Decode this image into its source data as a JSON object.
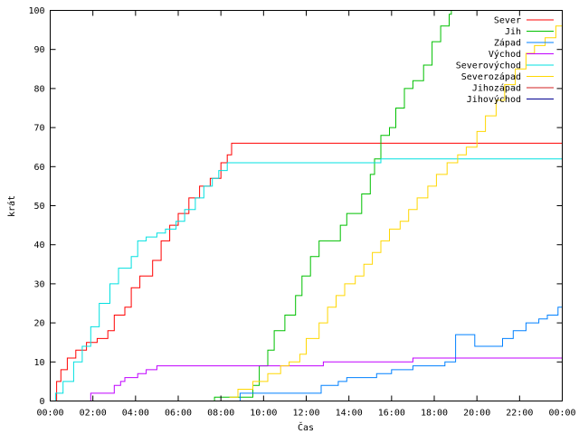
{
  "chart_data": {
    "type": "line",
    "xlabel": "Čas",
    "ylabel": "krát",
    "xlim": [
      0,
      24
    ],
    "ylim": [
      0,
      100
    ],
    "x_ticks": [
      {
        "value": 0,
        "label": "00:00"
      },
      {
        "value": 2,
        "label": "02:00"
      },
      {
        "value": 4,
        "label": "04:00"
      },
      {
        "value": 6,
        "label": "06:00"
      },
      {
        "value": 8,
        "label": "08:00"
      },
      {
        "value": 10,
        "label": "10:00"
      },
      {
        "value": 12,
        "label": "12:00"
      },
      {
        "value": 14,
        "label": "14:00"
      },
      {
        "value": 16,
        "label": "16:00"
      },
      {
        "value": 18,
        "label": "18:00"
      },
      {
        "value": 20,
        "label": "20:00"
      },
      {
        "value": 22,
        "label": "22:00"
      },
      {
        "value": 24,
        "label": "00:00"
      }
    ],
    "y_ticks": [
      0,
      10,
      20,
      30,
      40,
      50,
      60,
      70,
      80,
      90,
      100
    ],
    "grid": false,
    "legend_position": "top-right",
    "series": [
      {
        "name": "Sever",
        "color": "#ff0000",
        "points": [
          [
            0.2,
            0
          ],
          [
            0.3,
            5
          ],
          [
            0.5,
            8
          ],
          [
            0.8,
            11
          ],
          [
            1.2,
            13
          ],
          [
            1.7,
            15
          ],
          [
            2.2,
            16
          ],
          [
            2.7,
            18
          ],
          [
            3.0,
            22
          ],
          [
            3.5,
            24
          ],
          [
            3.8,
            29
          ],
          [
            4.2,
            32
          ],
          [
            4.8,
            36
          ],
          [
            5.2,
            41
          ],
          [
            5.6,
            45
          ],
          [
            6.0,
            48
          ],
          [
            6.5,
            52
          ],
          [
            7.0,
            55
          ],
          [
            7.5,
            57
          ],
          [
            8.0,
            61
          ],
          [
            8.3,
            63
          ],
          [
            8.5,
            66
          ],
          [
            24,
            66
          ]
        ]
      },
      {
        "name": "Jih",
        "color": "#00c000",
        "points": [
          [
            7.6,
            0
          ],
          [
            7.7,
            1
          ],
          [
            9.3,
            1
          ],
          [
            9.5,
            4
          ],
          [
            9.8,
            9
          ],
          [
            10.2,
            13
          ],
          [
            10.5,
            18
          ],
          [
            11.0,
            22
          ],
          [
            11.5,
            27
          ],
          [
            11.8,
            32
          ],
          [
            12.2,
            37
          ],
          [
            12.6,
            41
          ],
          [
            13.3,
            41
          ],
          [
            13.6,
            45
          ],
          [
            13.9,
            48
          ],
          [
            14.3,
            48
          ],
          [
            14.6,
            53
          ],
          [
            15.0,
            58
          ],
          [
            15.2,
            62
          ],
          [
            15.5,
            68
          ],
          [
            15.9,
            70
          ],
          [
            16.2,
            75
          ],
          [
            16.6,
            80
          ],
          [
            17.0,
            82
          ],
          [
            17.5,
            86
          ],
          [
            17.9,
            92
          ],
          [
            18.3,
            96
          ],
          [
            18.7,
            99
          ],
          [
            18.8,
            100
          ]
        ]
      },
      {
        "name": "Západ",
        "color": "#0080ff",
        "points": [
          [
            8.8,
            0
          ],
          [
            8.9,
            2
          ],
          [
            12.6,
            2
          ],
          [
            12.7,
            4
          ],
          [
            13.5,
            5
          ],
          [
            13.9,
            6
          ],
          [
            15.3,
            7
          ],
          [
            16.0,
            8
          ],
          [
            17.0,
            9
          ],
          [
            18.5,
            10
          ],
          [
            19.0,
            17
          ],
          [
            19.5,
            17
          ],
          [
            19.9,
            14
          ],
          [
            20.8,
            14
          ],
          [
            21.2,
            16
          ],
          [
            21.7,
            18
          ],
          [
            22.3,
            20
          ],
          [
            22.9,
            21
          ],
          [
            23.3,
            22
          ],
          [
            23.8,
            24
          ],
          [
            24,
            24
          ]
        ]
      },
      {
        "name": "Východ",
        "color": "#c000ff",
        "points": [
          [
            1.8,
            0
          ],
          [
            1.9,
            2
          ],
          [
            2.9,
            2
          ],
          [
            3.0,
            4
          ],
          [
            3.3,
            5
          ],
          [
            3.5,
            6
          ],
          [
            4.1,
            7
          ],
          [
            4.5,
            8
          ],
          [
            5.0,
            9
          ],
          [
            12.6,
            9
          ],
          [
            12.8,
            10
          ],
          [
            16.6,
            10
          ],
          [
            17.0,
            11
          ],
          [
            24,
            11
          ]
        ]
      },
      {
        "name": "Severovýchod",
        "color": "#00e0e0",
        "points": [
          [
            0.1,
            0
          ],
          [
            0.25,
            2
          ],
          [
            0.6,
            5
          ],
          [
            1.1,
            10
          ],
          [
            1.5,
            14
          ],
          [
            1.9,
            19
          ],
          [
            2.3,
            25
          ],
          [
            2.8,
            30
          ],
          [
            3.2,
            34
          ],
          [
            3.8,
            37
          ],
          [
            4.1,
            41
          ],
          [
            4.5,
            42
          ],
          [
            5.0,
            43
          ],
          [
            5.4,
            44
          ],
          [
            5.9,
            46
          ],
          [
            6.3,
            49
          ],
          [
            6.8,
            52
          ],
          [
            7.2,
            55
          ],
          [
            7.6,
            57
          ],
          [
            7.9,
            59
          ],
          [
            8.3,
            61
          ],
          [
            15.0,
            61
          ],
          [
            15.5,
            62
          ],
          [
            24,
            62
          ]
        ]
      },
      {
        "name": "Severozápad",
        "color": "#ffd700",
        "points": [
          [
            8.4,
            1
          ],
          [
            8.8,
            3
          ],
          [
            9.5,
            5
          ],
          [
            10.2,
            7
          ],
          [
            10.8,
            9
          ],
          [
            11.2,
            10
          ],
          [
            11.7,
            12
          ],
          [
            12.0,
            16
          ],
          [
            12.6,
            20
          ],
          [
            13.0,
            24
          ],
          [
            13.4,
            27
          ],
          [
            13.8,
            30
          ],
          [
            14.3,
            32
          ],
          [
            14.7,
            35
          ],
          [
            15.1,
            38
          ],
          [
            15.5,
            41
          ],
          [
            15.9,
            44
          ],
          [
            16.4,
            46
          ],
          [
            16.8,
            49
          ],
          [
            17.2,
            52
          ],
          [
            17.7,
            55
          ],
          [
            18.1,
            58
          ],
          [
            18.6,
            61
          ],
          [
            19.1,
            63
          ],
          [
            19.5,
            65
          ],
          [
            20.0,
            69
          ],
          [
            20.4,
            73
          ],
          [
            20.9,
            77
          ],
          [
            21.3,
            81
          ],
          [
            21.8,
            85
          ],
          [
            22.3,
            89
          ],
          [
            22.7,
            91
          ],
          [
            23.2,
            93
          ],
          [
            23.7,
            96
          ],
          [
            24,
            100
          ]
        ]
      },
      {
        "name": "Jihozápad",
        "color": "#d02020",
        "points": []
      },
      {
        "name": "Jihovýchod",
        "color": "#000090",
        "points": []
      }
    ]
  }
}
